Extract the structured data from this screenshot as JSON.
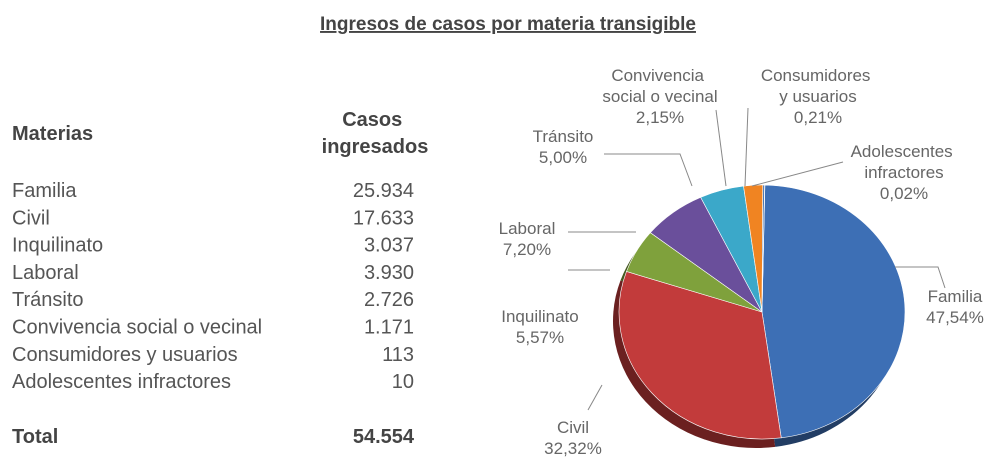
{
  "title": "Ingresos de casos por materia transigible",
  "table": {
    "header": [
      "Materias",
      "Casos ingresados"
    ],
    "rows": [
      [
        "Familia",
        "25.934"
      ],
      [
        "Civil",
        "17.633"
      ],
      [
        "Inquilinato",
        "3.037"
      ],
      [
        "Laboral",
        "3.930"
      ],
      [
        "Tránsito",
        "2.726"
      ],
      [
        "Convivencia social o vecinal",
        "1.171"
      ],
      [
        "Consumidores y usuarios",
        "113"
      ],
      [
        "Adolescentes infractores",
        "10"
      ]
    ],
    "total": [
      "Total",
      "54.554"
    ]
  },
  "chart_data": {
    "type": "pie",
    "categories": [
      "Familia",
      "Civil",
      "Inquilinato",
      "Laboral",
      "Tránsito",
      "Convivencia social o vecinal",
      "Consumidores y usuarios",
      "Adolescentes infractores"
    ],
    "values": [
      47.54,
      32.32,
      5.57,
      7.2,
      5.0,
      2.15,
      0.21,
      0.02
    ],
    "value_labels": [
      "47,54%",
      "32,32%",
      "5,57%",
      "7,20%",
      "5,00%",
      "2,15%",
      "0,21%",
      "0,02%"
    ],
    "colors": [
      "#3d6fb5",
      "#c23b3b",
      "#7fa13c",
      "#6a4f9b",
      "#3ba8c9",
      "#f08422",
      "#4b78b5",
      "#2f4f7a"
    ]
  }
}
